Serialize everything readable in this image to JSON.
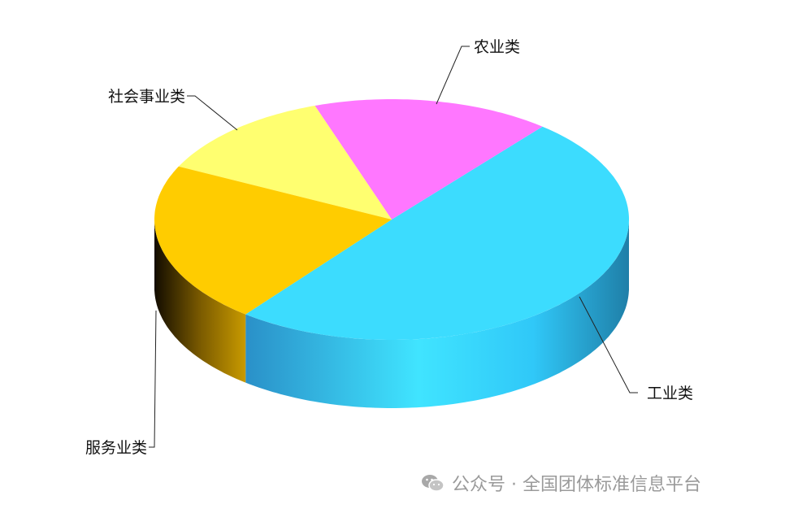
{
  "chart_data": {
    "type": "pie",
    "style": "3d",
    "unit": "percent (estimated from slice angles)",
    "slices": [
      {
        "label": "工业类",
        "value": 49.6,
        "color": "#3cdcfe"
      },
      {
        "label": "农业类",
        "value": 16.2,
        "color": "#ff77ff"
      },
      {
        "label": "社会事业类",
        "value": 12.5,
        "color": "#ffff70"
      },
      {
        "label": "服务业类",
        "value": 21.7,
        "color": "#ffcc00"
      }
    ],
    "legend": "none"
  },
  "watermark": {
    "text": "公众号 · 全国团体标准信息平台",
    "icon": "wechat-icon"
  }
}
